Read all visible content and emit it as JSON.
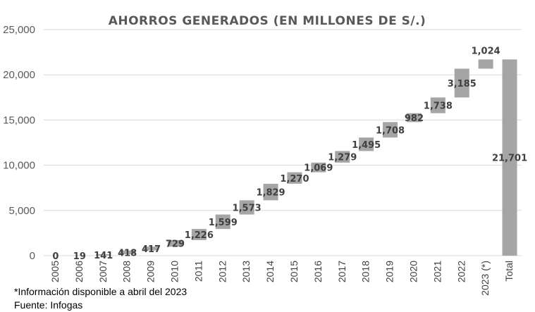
{
  "chart_data": {
    "type": "waterfall",
    "title": "AHORROS GENERADOS (EN MILLONES DE S/.)",
    "xlabel": "",
    "ylabel": "",
    "ylim": [
      0,
      25000
    ],
    "yticks": [
      0,
      5000,
      10000,
      15000,
      20000,
      25000
    ],
    "ytick_labels": [
      "0",
      "5,000",
      "10,000",
      "15,000",
      "20,000",
      "25,000"
    ],
    "grid": true,
    "legend": "none",
    "bar_color": "#a5a5a5",
    "categories": [
      "2005",
      "2006",
      "2007",
      "2008",
      "2009",
      "2010",
      "2011",
      "2012",
      "2013",
      "2014",
      "2015",
      "2016",
      "2017",
      "2018",
      "2019",
      "2020",
      "2021",
      "2022",
      "2023 (*)",
      "Total"
    ],
    "values": [
      0,
      19,
      141,
      418,
      417,
      729,
      1226,
      1599,
      1573,
      1829,
      1270,
      1069,
      1279,
      1495,
      1708,
      982,
      1738,
      3185,
      1024,
      21701
    ],
    "value_labels": [
      "0",
      "19",
      "141",
      "418",
      "417",
      "729",
      "1,226",
      "1,599",
      "1,573",
      "1,829",
      "1,270",
      "1,069",
      "1,279",
      "1,495",
      "1,708",
      "982",
      "1,738",
      "3,185",
      "1,024",
      "21,701"
    ],
    "total_category": "Total"
  },
  "footnote": "*Información disponible a abril del 2023",
  "source": "Fuente: Infogas"
}
